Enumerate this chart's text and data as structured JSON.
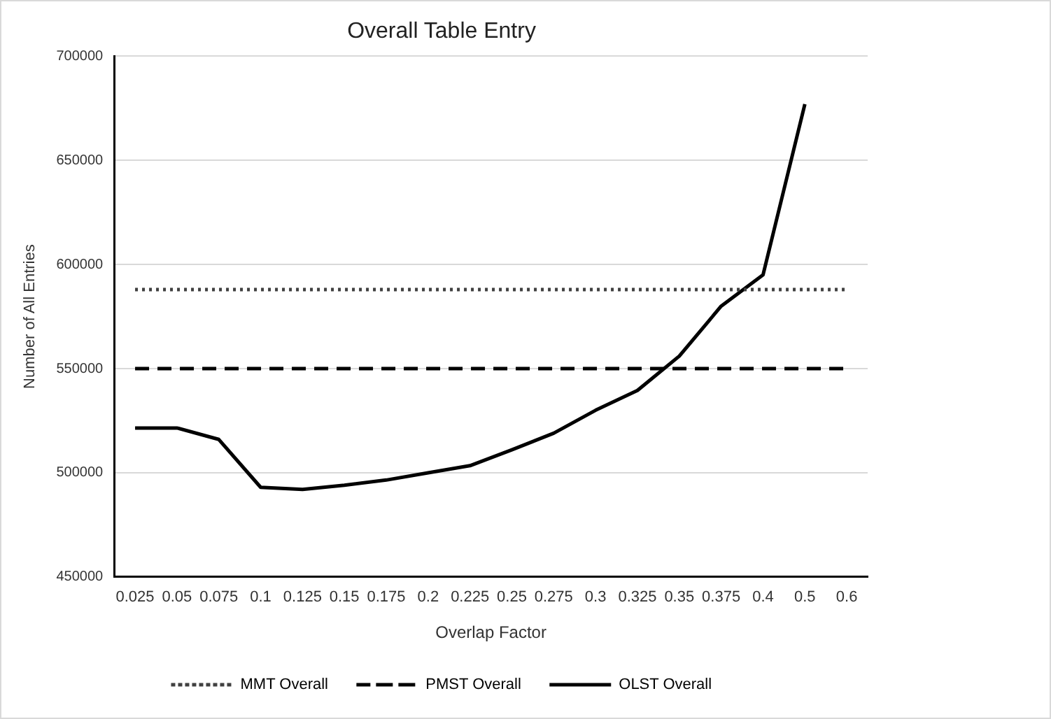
{
  "chart_data": {
    "type": "line",
    "title": "Overall Table Entry",
    "xlabel": "Overlap Factor",
    "ylabel": "Number of All Entries",
    "categories": [
      "0.025",
      "0.05",
      "0.075",
      "0.1",
      "0.125",
      "0.15",
      "0.175",
      "0.2",
      "0.225",
      "0.25",
      "0.275",
      "0.3",
      "0.325",
      "0.35",
      "0.375",
      "0.4",
      "0.5",
      "0.6"
    ],
    "series": [
      {
        "name": "MMT Overall",
        "color": "#404040",
        "line_style": "dotted",
        "values": [
          588000,
          588000,
          588000,
          588000,
          588000,
          588000,
          588000,
          588000,
          588000,
          588000,
          588000,
          588000,
          588000,
          588000,
          588000,
          588000,
          588000,
          588000
        ]
      },
      {
        "name": "PMST Overall",
        "color": "#000000",
        "line_style": "dashed",
        "values": [
          550000,
          550000,
          550000,
          550000,
          550000,
          550000,
          550000,
          550000,
          550000,
          550000,
          550000,
          550000,
          550000,
          550000,
          550000,
          550000,
          550000,
          550000
        ]
      },
      {
        "name": "OLST Overall",
        "color": "#000000",
        "line_style": "solid",
        "values": [
          521500,
          521500,
          516000,
          493000,
          492000,
          494000,
          496500,
          500000,
          503400,
          511000,
          519000,
          530000,
          539500,
          556000,
          580000,
          595000,
          677000,
          null
        ]
      }
    ],
    "ylim": [
      450000,
      700000
    ],
    "yticks": [
      450000,
      500000,
      550000,
      600000,
      650000,
      700000
    ],
    "grid": "y",
    "legend": "bottom",
    "marker": "none"
  }
}
